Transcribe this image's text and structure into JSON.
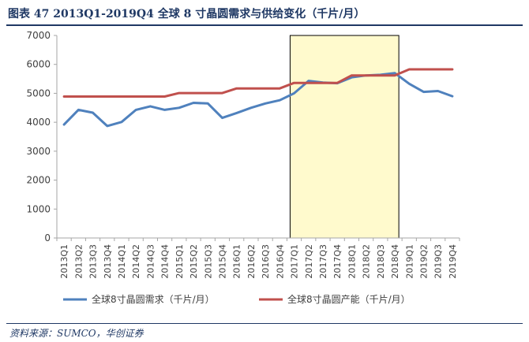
{
  "figure": {
    "title": "图表 47 2013Q1-2019Q4 全球 8 寸晶圆需求与供给变化（千片/月）",
    "source": "资料来源：SUMCO，华创证券"
  },
  "chart_data": {
    "type": "line",
    "title": "2013Q1-2019Q4 全球 8 寸晶圆需求与供给变化（千片/月）",
    "xlabel": "",
    "ylabel": "",
    "ylim": [
      0,
      7000
    ],
    "yticks": [
      0,
      1000,
      2000,
      3000,
      4000,
      5000,
      6000,
      7000
    ],
    "grid": false,
    "legend_position": "bottom",
    "x": [
      "2013Q1",
      "2013Q2",
      "2013Q3",
      "2013Q4",
      "2014Q1",
      "2014Q2",
      "2014Q3",
      "2014Q4",
      "2015Q1",
      "2015Q2",
      "2015Q3",
      "2015Q4",
      "2016Q1",
      "2016Q2",
      "2016Q3",
      "2016Q4",
      "2017Q1",
      "2017Q2",
      "2017Q3",
      "2017Q4",
      "2018Q1",
      "2018Q2",
      "2018Q3",
      "2018Q4",
      "2019Q1",
      "2019Q2",
      "2019Q3",
      "2019Q4"
    ],
    "series": [
      {
        "name": "全球8寸晶圆需求（千片/月）",
        "color": "#4f81bd",
        "values": [
          3920,
          4430,
          4330,
          3870,
          4010,
          4430,
          4550,
          4430,
          4500,
          4670,
          4650,
          4150,
          4320,
          4500,
          4650,
          4760,
          5000,
          5430,
          5370,
          5350,
          5550,
          5620,
          5640,
          5700,
          5330,
          5050,
          5080,
          4900
        ]
      },
      {
        "name": "全球8寸晶圆产能（千片/月）",
        "color": "#c0504d",
        "values": [
          4890,
          4890,
          4890,
          4890,
          4890,
          4890,
          4890,
          4890,
          5010,
          5010,
          5010,
          5010,
          5170,
          5170,
          5170,
          5170,
          5360,
          5360,
          5360,
          5360,
          5620,
          5620,
          5620,
          5620,
          5830,
          5830,
          5830,
          5830
        ]
      }
    ],
    "highlight": {
      "from": "2017Q1",
      "to": "2018Q4",
      "color": "#fffacd",
      "border": "#000000"
    }
  }
}
